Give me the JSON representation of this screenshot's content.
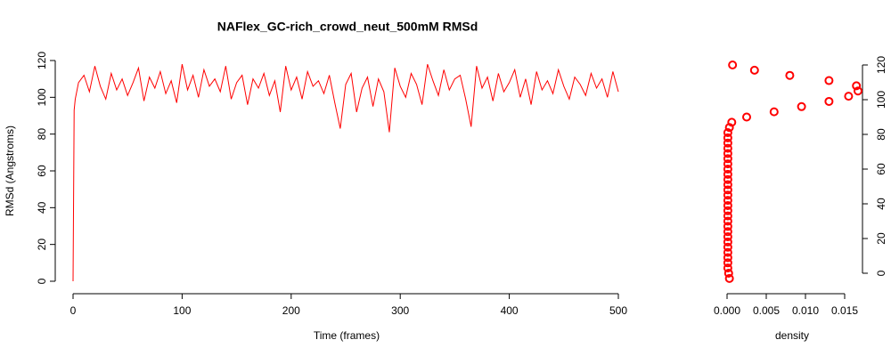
{
  "chart_data": [
    {
      "type": "line",
      "title": "NAFlex_GC-rich_crowd_neut_500mM RMSd",
      "x_label": "Time (frames)",
      "y_label": "RMSd (Angstroms)",
      "x": [
        0,
        1,
        2,
        5,
        10,
        15,
        20,
        25,
        30,
        35,
        40,
        45,
        50,
        55,
        60,
        65,
        70,
        75,
        80,
        85,
        90,
        95,
        100,
        105,
        110,
        115,
        120,
        125,
        130,
        135,
        140,
        145,
        150,
        155,
        160,
        165,
        170,
        175,
        180,
        185,
        190,
        195,
        200,
        205,
        210,
        215,
        220,
        225,
        230,
        235,
        240,
        245,
        250,
        255,
        260,
        265,
        270,
        275,
        280,
        285,
        290,
        295,
        300,
        305,
        310,
        315,
        320,
        325,
        330,
        335,
        340,
        345,
        350,
        355,
        360,
        365,
        370,
        375,
        380,
        385,
        390,
        395,
        400,
        405,
        410,
        415,
        420,
        425,
        430,
        435,
        440,
        445,
        450,
        455,
        460,
        465,
        470,
        475,
        480,
        485,
        490,
        495,
        500
      ],
      "series": [
        {
          "color": "#ff0000",
          "values": [
            0,
            93,
            99,
            108,
            112,
            103,
            117,
            106,
            99,
            113,
            104,
            110,
            101,
            108,
            116,
            98,
            111,
            105,
            114,
            102,
            109,
            97,
            118,
            104,
            112,
            100,
            115,
            106,
            110,
            103,
            117,
            99,
            108,
            112,
            96,
            110,
            105,
            113,
            101,
            109,
            92,
            117,
            104,
            111,
            99,
            114,
            106,
            109,
            102,
            112,
            97,
            83,
            107,
            113,
            92,
            105,
            111,
            95,
            110,
            103,
            81,
            116,
            106,
            100,
            113,
            107,
            96,
            118,
            109,
            101,
            115,
            104,
            110,
            112,
            99,
            84,
            117,
            105,
            111,
            98,
            113,
            103,
            108,
            115,
            100,
            110,
            96,
            114,
            104,
            109,
            102,
            115,
            106,
            99,
            111,
            107,
            101,
            113,
            105,
            110,
            100,
            114,
            103
          ]
        }
      ],
      "xlim": [
        0,
        500
      ],
      "xticks": [
        0,
        100,
        200,
        300,
        400,
        500
      ],
      "ylim": [
        0,
        120
      ],
      "yticks": [
        0,
        20,
        40,
        60,
        80,
        100,
        120
      ]
    },
    {
      "type": "scatter",
      "x_label": "density",
      "series": [
        {
          "color": "#ff0000",
          "x": [
            0.0003,
            0.0002,
            0.0001,
            0.0001,
            0.0001,
            0.0001,
            0.0001,
            0.0001,
            0.0001,
            0.0001,
            0.0001,
            0.0001,
            0.0001,
            0.0001,
            0.0001,
            0.0001,
            0.0001,
            0.0001,
            0.0001,
            0.0001,
            0.0001,
            0.0001,
            0.0001,
            0.0001,
            0.0001,
            0.0001,
            0.0001,
            0.0001,
            0.0001,
            0.0003,
            0.0006,
            0.0025,
            0.006,
            0.0095,
            0.013,
            0.0155,
            0.0167,
            0.0165,
            0.013,
            0.008,
            0.0035,
            0.0007
          ],
          "values": [
            -3,
            0,
            3,
            6,
            9,
            12,
            15,
            18,
            21,
            24,
            27,
            30,
            33,
            36,
            39,
            42,
            45,
            48,
            51,
            54,
            57,
            60,
            63,
            66,
            69,
            72,
            75,
            78,
            81,
            84,
            87,
            90,
            93,
            96,
            99,
            102,
            105,
            108,
            111,
            114,
            117,
            120
          ]
        }
      ],
      "xlim": [
        0,
        0.015
      ],
      "xticks": [
        {
          "value": 0,
          "label": "0.000"
        },
        {
          "value": 0.005,
          "label": "0.005"
        },
        {
          "value": 0.01,
          "label": "0.010"
        },
        {
          "value": 0.015,
          "label": "0.015"
        }
      ],
      "ylim": [
        0,
        120
      ],
      "yticks": [
        0,
        20,
        40,
        60,
        80,
        100,
        120
      ]
    }
  ]
}
